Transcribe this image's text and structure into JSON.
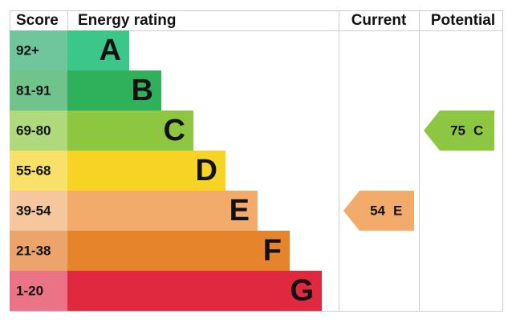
{
  "header": {
    "score": "Score",
    "energy_rating": "Energy rating",
    "current": "Current",
    "potential": "Potential"
  },
  "rows": [
    {
      "score": "92+",
      "letter": "A",
      "color": "#3cc68a",
      "score_color": "#6fc59c"
    },
    {
      "score": "81-91",
      "letter": "B",
      "color": "#2fb15c",
      "score_color": "#6fc38b"
    },
    {
      "score": "69-80",
      "letter": "C",
      "color": "#8dc641",
      "score_color": "#b0d97c"
    },
    {
      "score": "55-68",
      "letter": "D",
      "color": "#f7d325",
      "score_color": "#f9e169"
    },
    {
      "score": "39-54",
      "letter": "E",
      "color": "#f2ab6a",
      "score_color": "#f6c79d"
    },
    {
      "score": "21-38",
      "letter": "F",
      "color": "#e5842b",
      "score_color": "#eda46a"
    },
    {
      "score": "1-20",
      "letter": "G",
      "color": "#e0283f",
      "score_color": "#ea7486"
    }
  ],
  "current": {
    "value": 54,
    "rating": "E"
  },
  "potential": {
    "value": 75,
    "rating": "C"
  }
}
